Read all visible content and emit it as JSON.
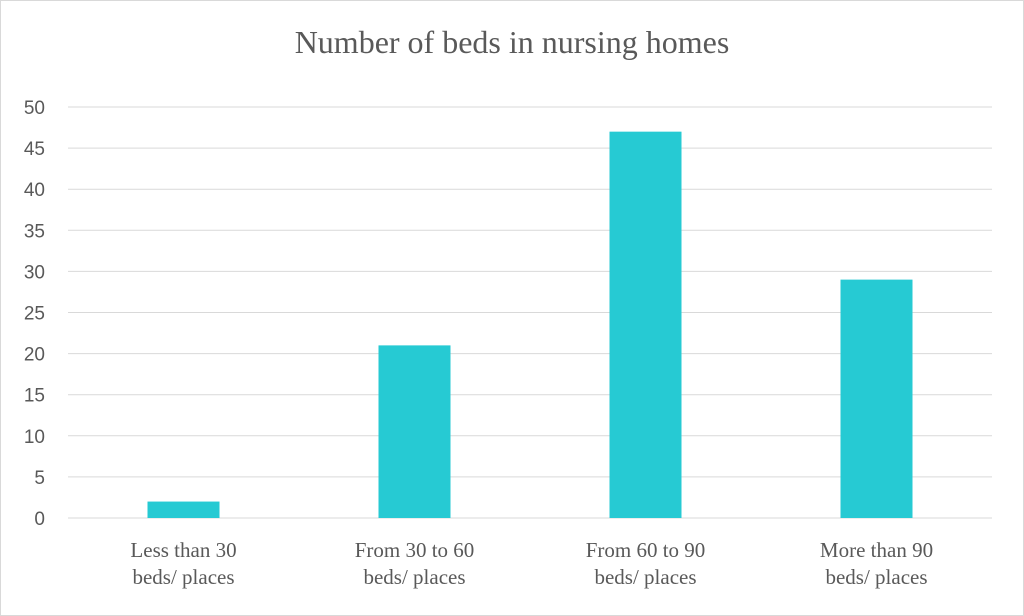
{
  "chart_data": {
    "type": "bar",
    "title": "Number of beds in nursing homes",
    "categories": [
      [
        "Less than 30",
        "beds/ places"
      ],
      [
        "From 30 to 60",
        "beds/ places"
      ],
      [
        "From 60 to 90",
        "beds/ places"
      ],
      [
        "More than 90",
        "beds/ places"
      ]
    ],
    "values": [
      2,
      21,
      47,
      29
    ],
    "ylim": [
      0,
      50
    ],
    "yticks": [
      0,
      5,
      10,
      15,
      20,
      25,
      30,
      35,
      40,
      45,
      50
    ],
    "grid": true,
    "bar_color": "#26CAD3",
    "grid_color": "#d9d9d9"
  }
}
